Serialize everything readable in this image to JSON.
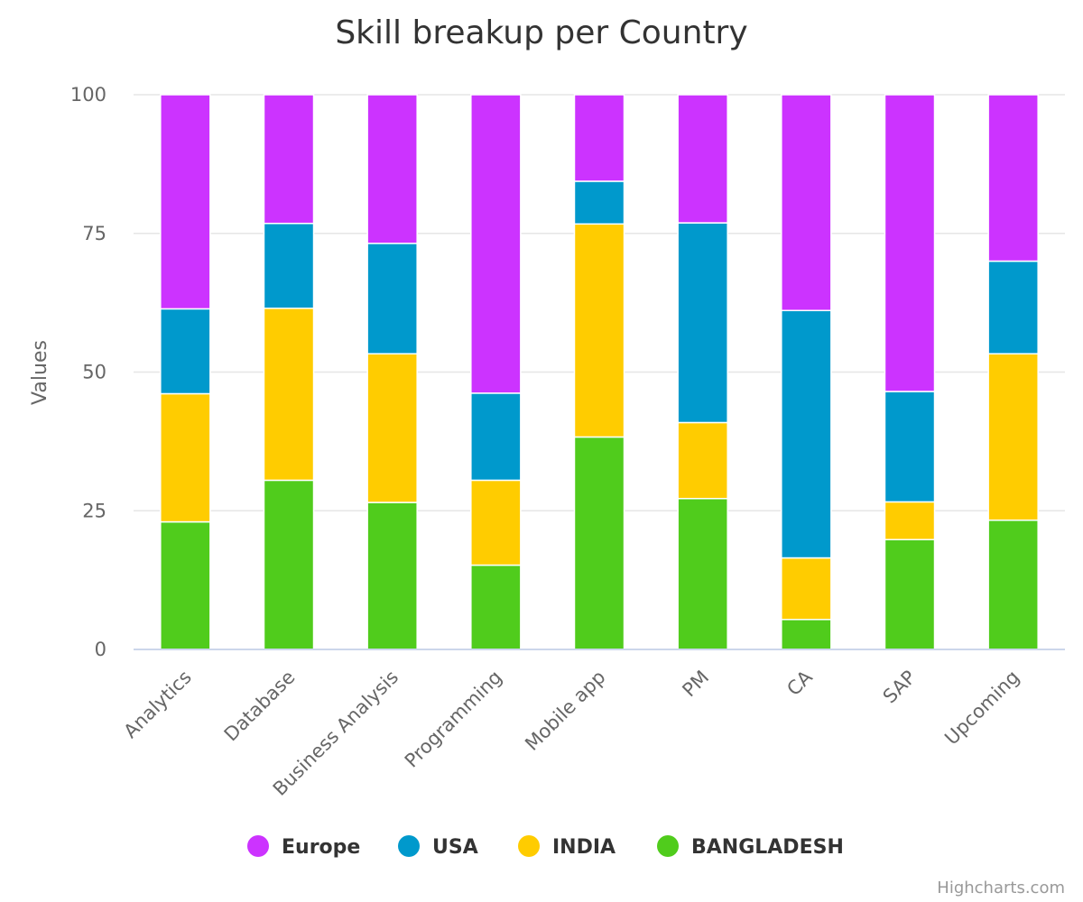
{
  "chart_data": {
    "type": "bar",
    "stacking": "percent",
    "title": "Skill breakup per Country",
    "ylabel": "Values",
    "ylim": [
      0,
      100
    ],
    "yticks": [
      0,
      25,
      50,
      75,
      100
    ],
    "grid": true,
    "legend_position": "bottom-center",
    "categories": [
      "Analytics",
      "Database",
      "Business Analysis",
      "Programming",
      "Mobile app",
      "PM",
      "CA",
      "SAP",
      "Upcoming"
    ],
    "series": [
      {
        "name": "BANGLADESH",
        "color": "#50cc1c",
        "values": [
          23,
          30.5,
          26.5,
          15.2,
          38.3,
          27.2,
          5.4,
          19.8,
          23.3
        ]
      },
      {
        "name": "INDIA",
        "color": "#ffcc00",
        "values": [
          23.1,
          31,
          26.8,
          15.3,
          38.4,
          13.7,
          11.1,
          6.8,
          30
        ]
      },
      {
        "name": "USA",
        "color": "#0099cc",
        "values": [
          15.3,
          15.3,
          19.9,
          15.7,
          7.7,
          36,
          44.6,
          19.9,
          16.7
        ]
      },
      {
        "name": "Europe",
        "color": "#cc33ff",
        "values": [
          38.6,
          23.2,
          26.8,
          53.8,
          15.6,
          23.1,
          38.9,
          53.5,
          30
        ]
      }
    ],
    "legend_order": [
      "Europe",
      "USA",
      "INDIA",
      "BANGLADESH"
    ]
  },
  "credit": "Highcharts.com"
}
